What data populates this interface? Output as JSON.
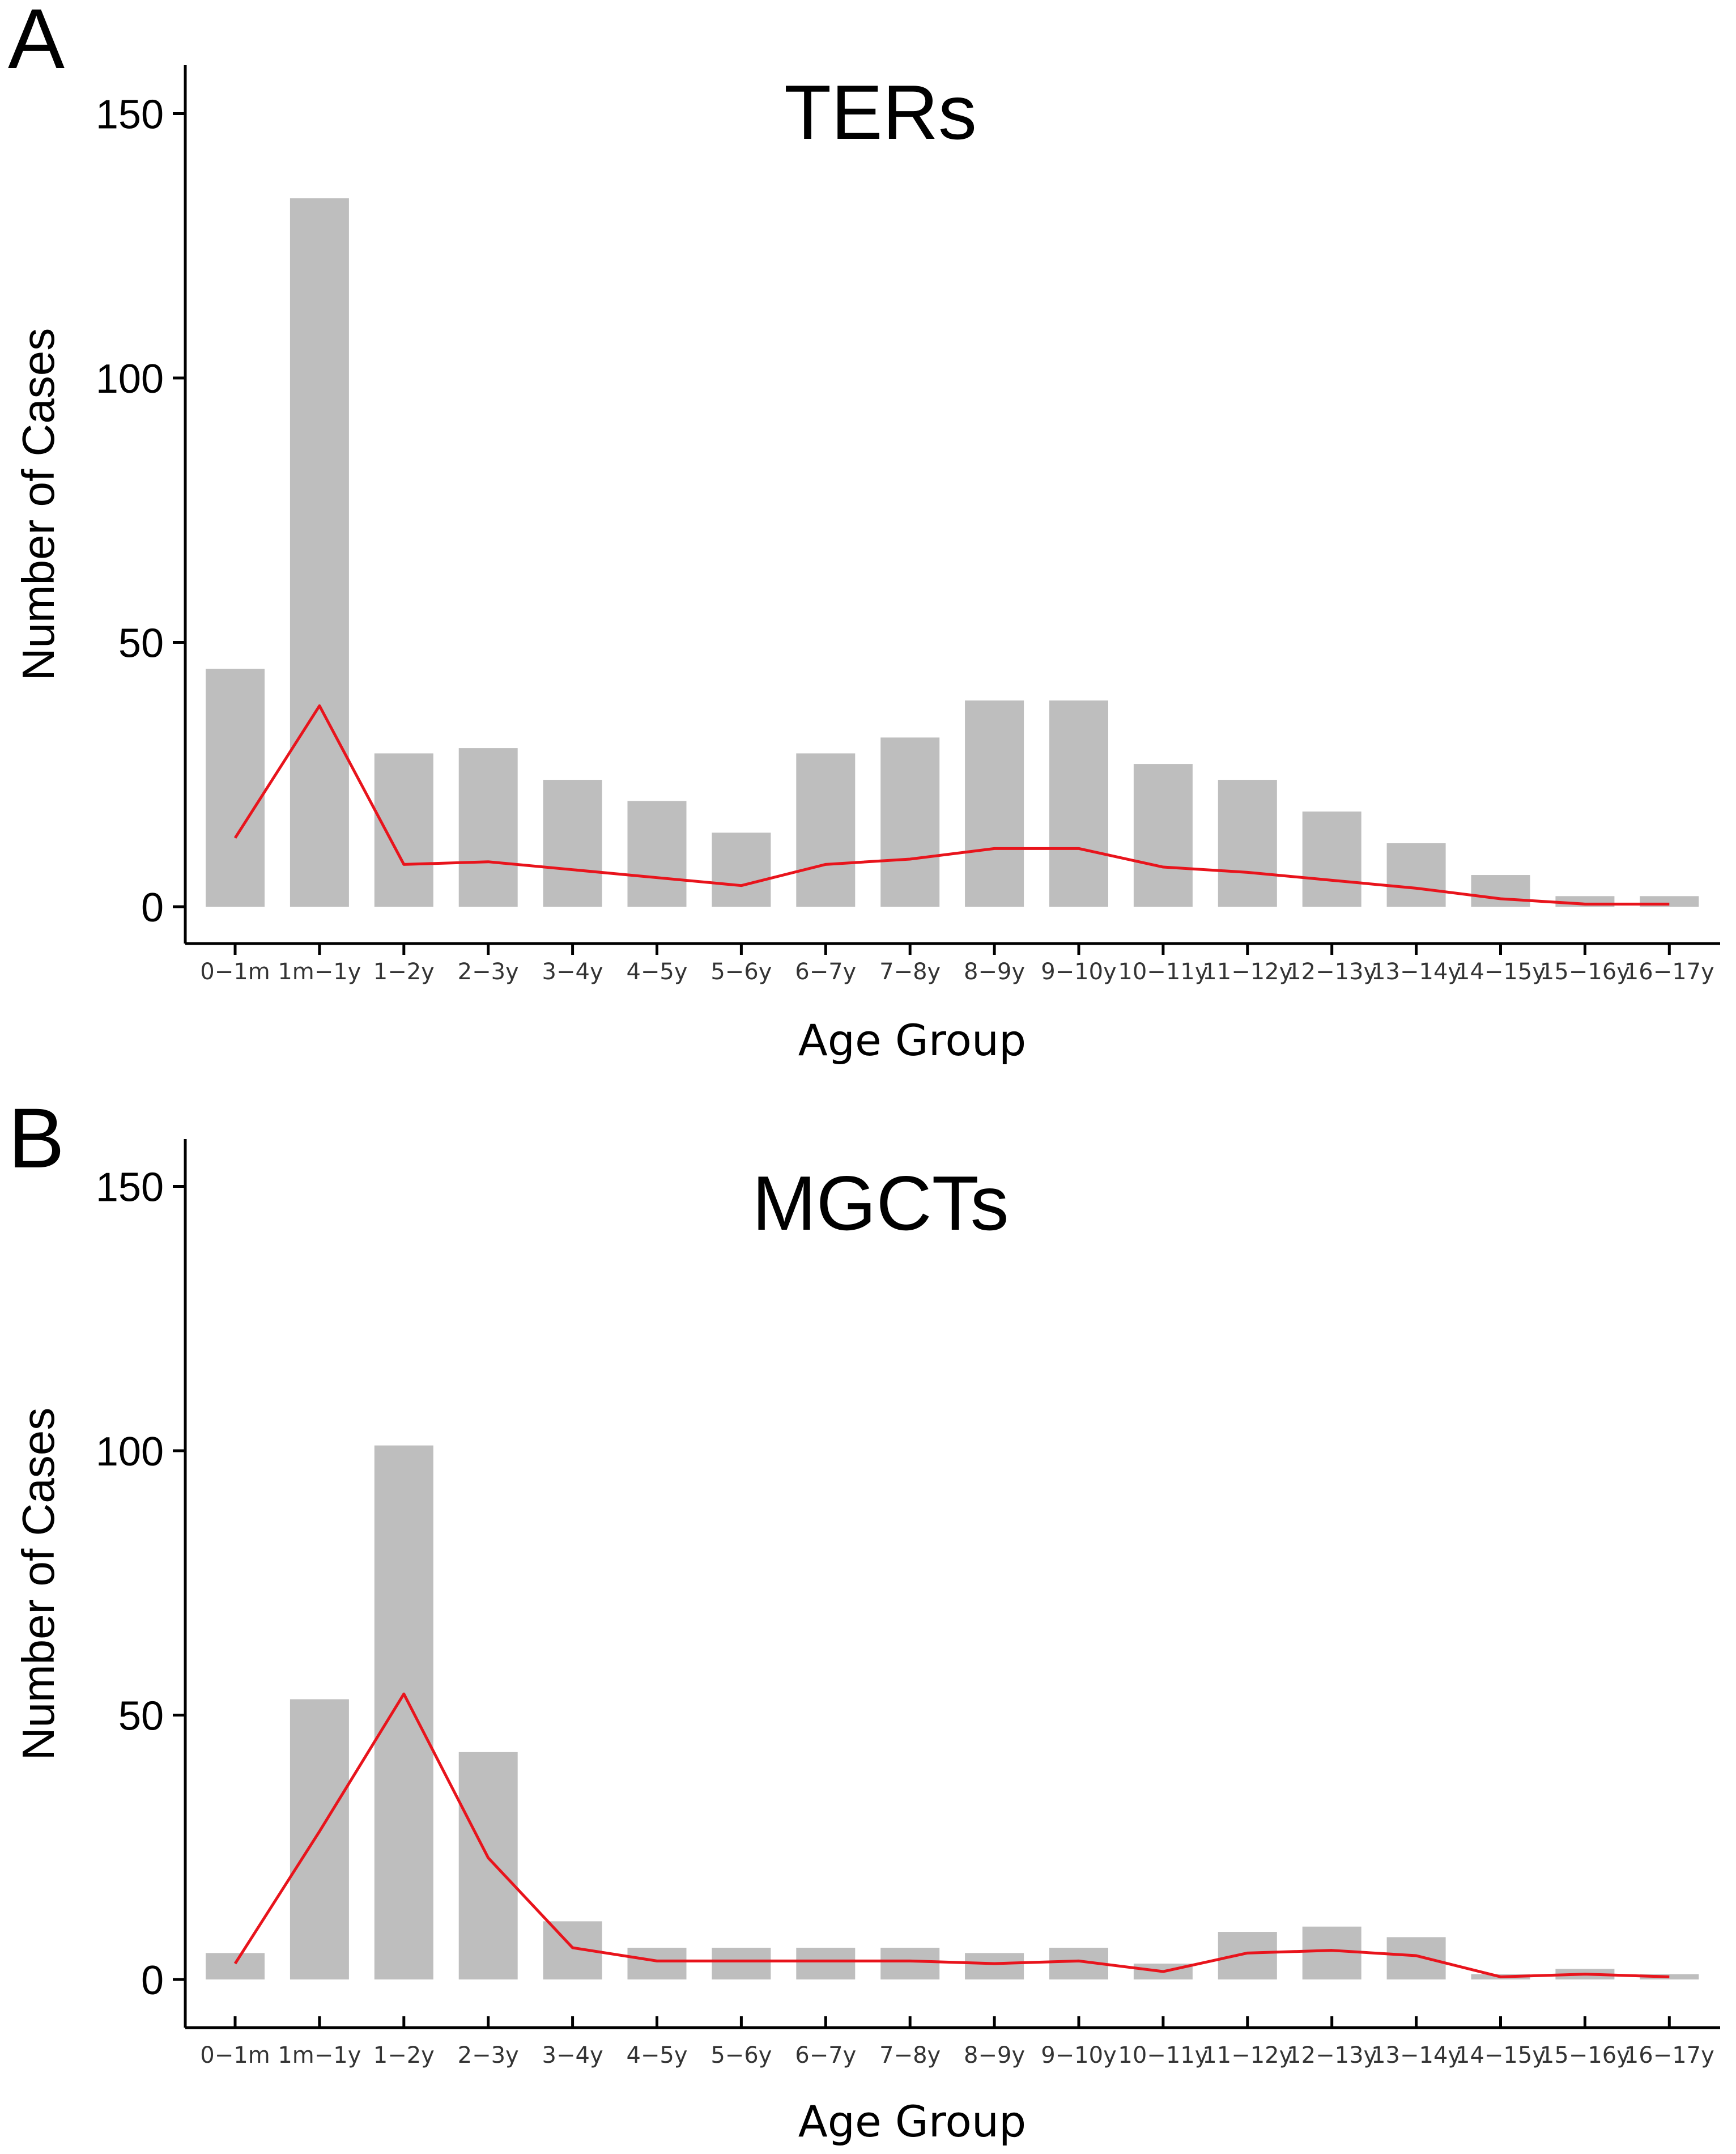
{
  "chart_data": [
    {
      "type": "bar",
      "panel": "A",
      "title": "TERs",
      "xlabel": "Age Group",
      "ylabel": "Number of Cases",
      "ylim": [
        0,
        150
      ],
      "yticks": [
        0,
        50,
        100,
        150
      ],
      "categories": [
        "0−1m",
        "1m−1y",
        "1−2y",
        "2−3y",
        "3−4y",
        "4−5y",
        "5−6y",
        "6−7y",
        "7−8y",
        "8−9y",
        "9−10y",
        "10−11y",
        "11−12y",
        "12−13y",
        "13−14y",
        "14−15y",
        "15−16y",
        "16−17y"
      ],
      "series": [
        {
          "name": "cases",
          "kind": "bar",
          "color": "#bebebe",
          "values": [
            45,
            134,
            29,
            30,
            24,
            20,
            14,
            29,
            32,
            39,
            39,
            27,
            24,
            18,
            12,
            6,
            2,
            2
          ]
        },
        {
          "name": "trend",
          "kind": "line",
          "color": "#e8141c",
          "values": [
            13,
            38,
            8,
            8.5,
            7,
            5.5,
            4,
            8,
            9,
            11,
            11,
            7.5,
            6.5,
            5,
            3.5,
            1.5,
            0.5,
            0.5
          ]
        }
      ]
    },
    {
      "type": "bar",
      "panel": "B",
      "title": "MGCTs",
      "xlabel": "Age Group",
      "ylabel": "Number of Cases",
      "ylim": [
        0,
        150
      ],
      "yticks": [
        0,
        50,
        100,
        150
      ],
      "categories": [
        "0−1m",
        "1m−1y",
        "1−2y",
        "2−3y",
        "3−4y",
        "4−5y",
        "5−6y",
        "6−7y",
        "7−8y",
        "8−9y",
        "9−10y",
        "10−11y",
        "11−12y",
        "12−13y",
        "13−14y",
        "14−15y",
        "15−16y",
        "16−17y"
      ],
      "series": [
        {
          "name": "cases",
          "kind": "bar",
          "color": "#bebebe",
          "values": [
            5,
            53,
            101,
            43,
            11,
            6,
            6,
            6,
            6,
            5,
            6,
            3,
            9,
            10,
            8,
            1,
            2,
            1
          ]
        },
        {
          "name": "trend",
          "kind": "line",
          "color": "#e8141c",
          "values": [
            3,
            28,
            54,
            23,
            6,
            3.5,
            3.5,
            3.5,
            3.5,
            3,
            3.5,
            1.5,
            5,
            5.5,
            4.5,
            0.5,
            1,
            0.5
          ]
        }
      ]
    }
  ]
}
